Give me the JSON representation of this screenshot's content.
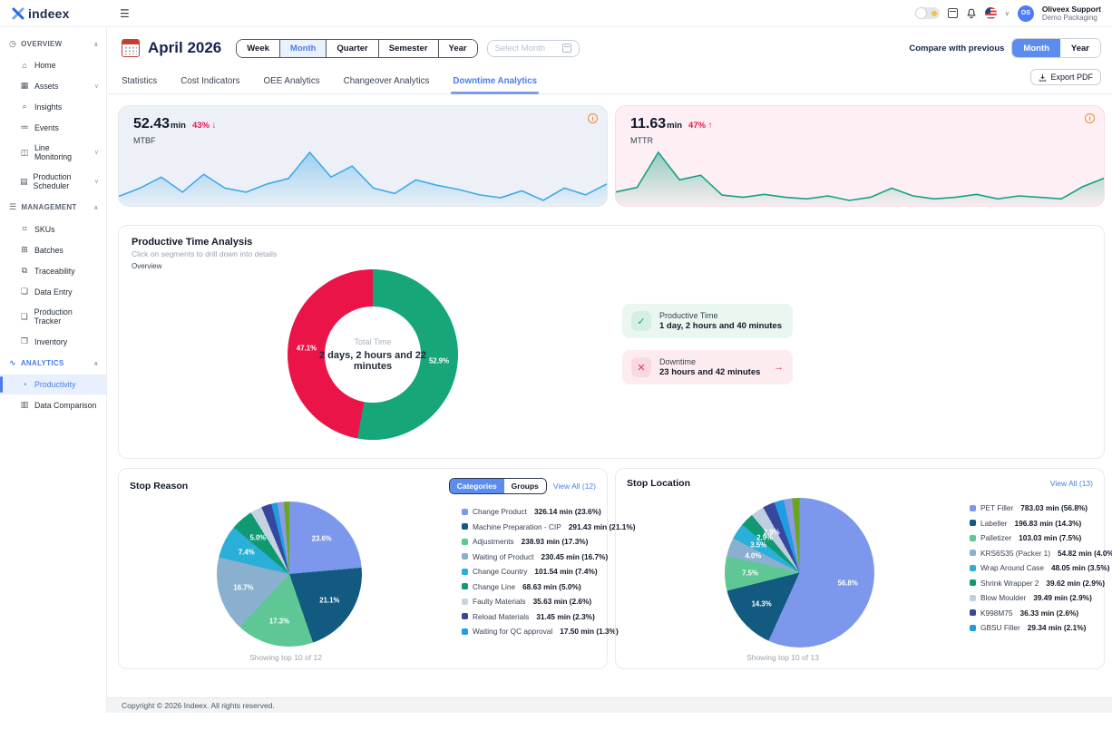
{
  "topbar": {
    "logo_text": "indeex",
    "user_name": "Oliveex Support",
    "user_org": "Demo Packaging",
    "avatar_initials": "OS"
  },
  "sidebar": {
    "sections": [
      {
        "label": "OVERVIEW",
        "icon": "clock",
        "items": [
          {
            "label": "Home",
            "icon": "home"
          },
          {
            "label": "Assets",
            "icon": "grid",
            "chevron": true
          },
          {
            "label": "Insights",
            "icon": "search"
          },
          {
            "label": "Events",
            "icon": "list"
          },
          {
            "label": "Line Monitoring",
            "icon": "monitor",
            "chevron": true
          },
          {
            "label": "Production Scheduler",
            "icon": "calendar",
            "chevron": true
          }
        ]
      },
      {
        "label": "MANAGEMENT",
        "icon": "menu",
        "items": [
          {
            "label": "SKUs",
            "icon": "hash"
          },
          {
            "label": "Batches",
            "icon": "box"
          },
          {
            "label": "Traceability",
            "icon": "trace"
          },
          {
            "label": "Data Entry",
            "icon": "file"
          },
          {
            "label": "Production Tracker",
            "icon": "file"
          },
          {
            "label": "Inventory",
            "icon": "inventory"
          }
        ]
      },
      {
        "label": "ANALYTICS",
        "icon": "wave",
        "accent": true,
        "items": [
          {
            "label": "Productivity",
            "icon": "gauge",
            "active": true
          },
          {
            "label": "Data Comparison",
            "icon": "bars"
          }
        ]
      }
    ]
  },
  "header": {
    "title": "April 2026",
    "range_options": [
      "Week",
      "Month",
      "Quarter",
      "Semester",
      "Year"
    ],
    "range_active": "Month",
    "select_month_placeholder": "Select Month",
    "compare_label": "Compare with previous",
    "compare_options": [
      "Month",
      "Year"
    ],
    "compare_active": "Month"
  },
  "tabs": {
    "items": [
      "Statistics",
      "Cost Indicators",
      "OEE Analytics",
      "Changeover Analytics",
      "Downtime Analytics"
    ],
    "active": "Downtime Analytics",
    "export_label": "Export PDF"
  },
  "kpis": [
    {
      "value": "52.43",
      "unit": "min",
      "delta": "43%",
      "arrow": "↓",
      "label": "MTBF"
    },
    {
      "value": "11.63",
      "unit": "min",
      "delta": "47%",
      "arrow": "↑",
      "label": "MTTR"
    }
  ],
  "productive_time": {
    "title": "Productive Time Analysis",
    "subtitle": "Click on segments to drill down into details",
    "mode_label": "Overview",
    "cards": [
      {
        "title": "Productive Time",
        "value": "1 day, 2 hours and 40 minutes"
      },
      {
        "title": "Downtime",
        "value": "23 hours and 42 minutes"
      }
    ]
  },
  "stop_reason": {
    "title": "Stop Reason",
    "toggle_options": [
      "Categories",
      "Groups"
    ],
    "toggle_active": "Categories",
    "view_all": "View All (12)",
    "footer": "Showing top 10 of 12"
  },
  "stop_location": {
    "title": "Stop Location",
    "view_all": "View All (13)",
    "footer": "Showing top 10 of 13"
  },
  "footer": {
    "copyright": "Copyright © 2026 Indeex. All rights reserved."
  },
  "chart_data": [
    {
      "id": "mtbf_trend",
      "type": "area",
      "color": "#3ea9e9",
      "values": [
        44,
        50,
        58,
        47,
        60,
        50,
        47,
        53,
        57,
        76,
        58,
        66,
        50,
        46,
        56,
        52,
        49,
        45,
        43,
        48,
        41,
        50,
        45,
        53
      ]
    },
    {
      "id": "mttr_trend",
      "type": "area",
      "color": "#15a184",
      "values": [
        34,
        40,
        86,
        50,
        56,
        30,
        27,
        31,
        27,
        25,
        29,
        23,
        27,
        39,
        29,
        25,
        27,
        31,
        25,
        29,
        27,
        25,
        41,
        52
      ]
    },
    {
      "id": "total_time_donut",
      "type": "pie",
      "donut": true,
      "label_min": 10,
      "center_title": "Total Time",
      "center_value": "2 days, 2 hours and 22 minutes",
      "slices": [
        {
          "name": "Productive Time",
          "value": 52.9,
          "color": "#16a679"
        },
        {
          "name": "Downtime",
          "value": 47.1,
          "color": "#eb1449"
        }
      ]
    },
    {
      "id": "stop_reason_pie",
      "type": "pie",
      "label_min": 5,
      "slices": [
        {
          "name": "Change Product",
          "duration": "326.14 min",
          "value": 23.6,
          "color": "#7c97ec"
        },
        {
          "name": "Machine Preparation - CIP",
          "duration": "291.43 min",
          "value": 21.1,
          "color": "#135a80"
        },
        {
          "name": "Adjustments",
          "duration": "238.93 min",
          "value": 17.3,
          "color": "#5ec795"
        },
        {
          "name": "Waiting of Product",
          "duration": "230.45 min",
          "value": 16.7,
          "color": "#8bb0cf"
        },
        {
          "name": "Change Country",
          "duration": "101.54 min",
          "value": 7.4,
          "color": "#2ab0d8"
        },
        {
          "name": "Change Line",
          "duration": "68.63 min",
          "value": 5.0,
          "color": "#0f9a72"
        },
        {
          "name": "Faulty Materials",
          "duration": "35.63 min",
          "value": 2.6,
          "color": "#c6d4e2"
        },
        {
          "name": "Reload Materials",
          "duration": "31.45 min",
          "value": 2.3,
          "color": "#37479e"
        },
        {
          "name": "Waiting for QC approval",
          "duration": "17.50 min",
          "value": 1.3,
          "color": "#1e9de3"
        }
      ],
      "others": [
        {
          "value": 1.5,
          "color": "#8d9ce0"
        },
        {
          "value": 1.2,
          "color": "#6aa51f"
        }
      ]
    },
    {
      "id": "stop_location_pie",
      "type": "pie",
      "label_min": 2.9,
      "slices": [
        {
          "name": "PET Filler",
          "duration": "783.03 min",
          "value": 56.8,
          "color": "#7c97ec"
        },
        {
          "name": "Labeller",
          "duration": "196.83 min",
          "value": 14.3,
          "color": "#135a80"
        },
        {
          "name": "Palletizer",
          "duration": "103.03 min",
          "value": 7.5,
          "color": "#5ec795"
        },
        {
          "name": "KRS6S35 (Packer 1)",
          "duration": "54.82 min",
          "value": 4.0,
          "color": "#8bb0cf"
        },
        {
          "name": "Wrap Around Case",
          "duration": "48.05 min",
          "value": 3.5,
          "color": "#2ab0d8"
        },
        {
          "name": "Shrink Wrapper 2",
          "duration": "39.62 min",
          "value": 2.9,
          "color": "#0f9a72"
        },
        {
          "name": "Blow Moulder",
          "duration": "39.49 min",
          "value": 2.9,
          "color": "#c0cfdf"
        },
        {
          "name": "K998M75",
          "duration": "36.33 min",
          "value": 2.6,
          "color": "#37479e"
        },
        {
          "name": "GBSU Filler",
          "duration": "29.34 min",
          "value": 2.1,
          "color": "#1e9de3"
        }
      ],
      "others": [
        {
          "value": 1.8,
          "color": "#8d9ce0"
        },
        {
          "value": 1.6,
          "color": "#6aa51f"
        }
      ]
    }
  ]
}
